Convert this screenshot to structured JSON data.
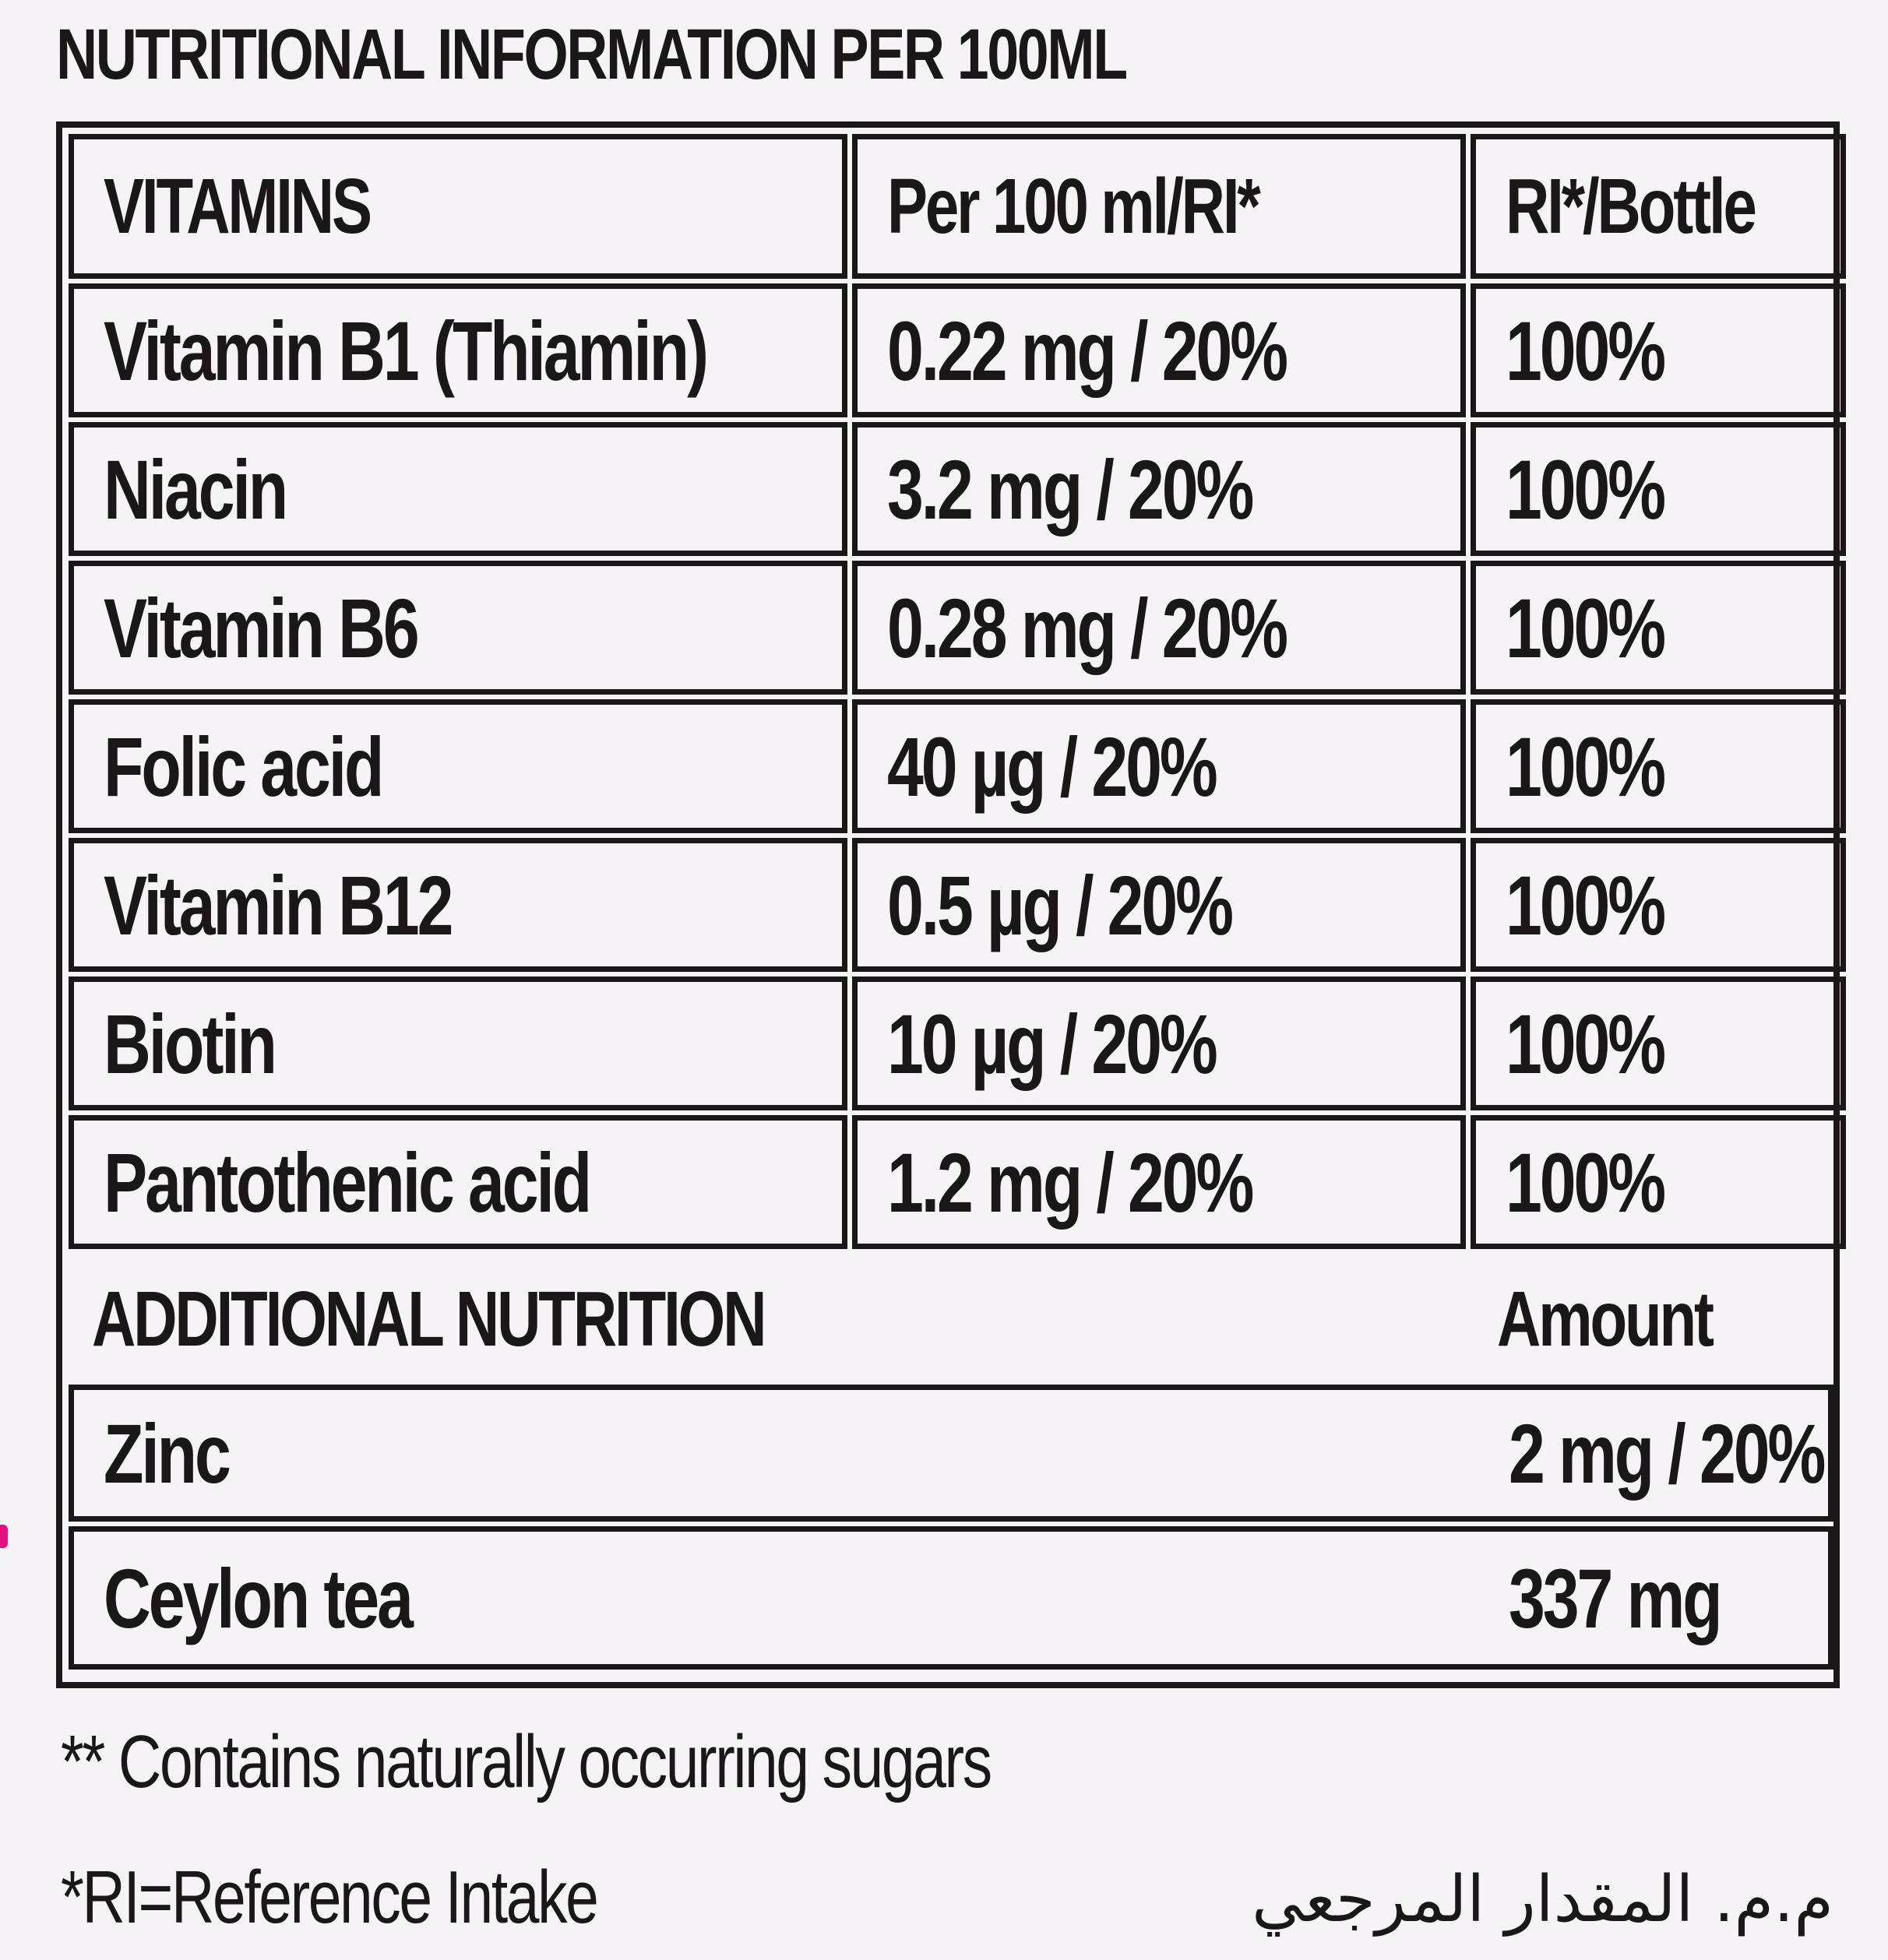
{
  "title": "NUTRITIONAL INFORMATION PER 100ML",
  "vitamins_table": {
    "headers": [
      "VITAMINS",
      "Per 100 ml/RI*",
      "RI*/Bottle"
    ],
    "rows": [
      [
        "Vitamin B1 (Thiamin)",
        "0.22 mg / 20%",
        "100%"
      ],
      [
        "Niacin",
        "3.2 mg / 20%",
        "100%"
      ],
      [
        "Vitamin B6",
        "0.28 mg / 20%",
        "100%"
      ],
      [
        "Folic acid",
        "40 µg / 20%",
        "100%"
      ],
      [
        "Vitamin B12",
        "0.5 µg / 20%",
        "100%"
      ],
      [
        "Biotin",
        "10 µg / 20%",
        "100%"
      ],
      [
        "Pantothenic acid",
        "1.2 mg / 20%",
        "100%"
      ]
    ]
  },
  "additional_table": {
    "headers": [
      "ADDITIONAL NUTRITION",
      "Amount"
    ],
    "rows": [
      [
        "Zinc",
        "2 mg / 20%"
      ],
      [
        "Ceylon tea",
        "337 mg"
      ]
    ]
  },
  "footnotes": {
    "sugars": "** Contains naturally occurring sugars",
    "ri": "*RI=Reference Intake",
    "arabic": "م.م. المقدار المرجعي"
  }
}
